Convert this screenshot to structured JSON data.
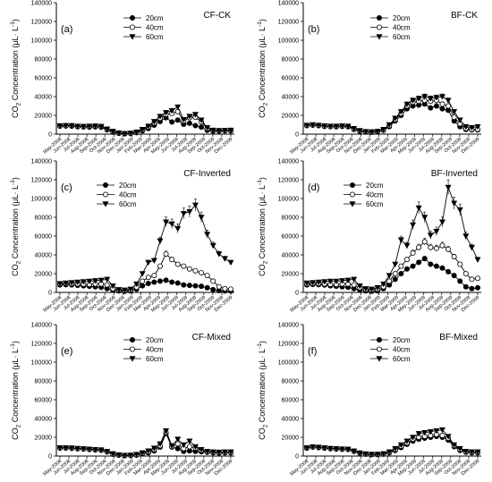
{
  "shared": {
    "ylabel_prefix": "CO",
    "ylabel_sub": "2",
    "ylabel_main": " Concentration",
    "ylabel_unit": "(μL· L",
    "ylabel_exp": "-1",
    "ylabel_close": ")",
    "y_ticks": [
      "0",
      "20000",
      "40000",
      "60000",
      "80000",
      "100000",
      "120000",
      "140000"
    ],
    "x_months": [
      "May-2008",
      "Jun-2008",
      "Jul-2008",
      "Aug-2008",
      "Sep-2008",
      "Oct-2008",
      "Nov-2008",
      "Dec-2008",
      "Jan-2009",
      "Feb-2009",
      "Mar-2009",
      "Apr-2009",
      "May-2009",
      "Jun-2009",
      "Jul-2009",
      "Aug-2009",
      "Sep-2009",
      "Oct-2009",
      "Nov-2009",
      "Dec-2009"
    ],
    "legend": [
      "20cm",
      "40cm",
      "60cm"
    ],
    "colors": {
      "line": "#000000",
      "open_marker": "#ffffff"
    }
  },
  "chart_data": [
    {
      "type": "line",
      "panel_label": "(a)",
      "title": "CF-CK",
      "legend_position": "top-center",
      "x": [
        0,
        1,
        2,
        3,
        4,
        5,
        6,
        7,
        8,
        9,
        10,
        11,
        12,
        13,
        14,
        15,
        16,
        17,
        18,
        19,
        20,
        21,
        22,
        23,
        24,
        25,
        26,
        27,
        28,
        29
      ],
      "ylim": [
        0,
        140000
      ],
      "series": [
        {
          "name": "20cm",
          "values": [
            8500,
            8700,
            8400,
            7800,
            7600,
            7500,
            7700,
            7400,
            4500,
            2200,
            800,
            300,
            600,
            1500,
            3500,
            6000,
            9500,
            13500,
            17500,
            13000,
            15000,
            10500,
            11500,
            9000,
            7500,
            4000,
            3200,
            3200,
            3400,
            3500
          ]
        },
        {
          "name": "40cm",
          "values": [
            8800,
            8900,
            9000,
            8200,
            8000,
            8200,
            8400,
            8000,
            5000,
            2800,
            1200,
            500,
            900,
            2000,
            4500,
            7500,
            12000,
            17000,
            21000,
            22000,
            24000,
            14000,
            17500,
            18000,
            13000,
            6000,
            4000,
            3600,
            3800,
            4000
          ]
        },
        {
          "name": "60cm",
          "values": [
            9000,
            9200,
            9100,
            8500,
            8300,
            8500,
            8700,
            8300,
            5500,
            3000,
            1400,
            700,
            1100,
            2300,
            5000,
            8500,
            13500,
            19000,
            23000,
            25000,
            29000,
            15500,
            19000,
            21000,
            15000,
            7000,
            4200,
            3800,
            4000,
            4200
          ]
        }
      ]
    },
    {
      "type": "line",
      "panel_label": "(b)",
      "title": "BF-CK",
      "legend_position": "top-center",
      "x": [
        0,
        1,
        2,
        3,
        4,
        5,
        6,
        7,
        8,
        9,
        10,
        11,
        12,
        13,
        14,
        15,
        16,
        17,
        18,
        19,
        20,
        21,
        22,
        23,
        24,
        25,
        26,
        27,
        28,
        29
      ],
      "ylim": [
        0,
        140000
      ],
      "series": [
        {
          "name": "20cm",
          "values": [
            9000,
            9500,
            9000,
            8200,
            8000,
            7800,
            8200,
            7800,
            5000,
            3000,
            2200,
            2000,
            2500,
            4000,
            8000,
            14000,
            20000,
            27000,
            30000,
            31000,
            32000,
            28000,
            30000,
            27000,
            25500,
            14000,
            8000,
            5000,
            4500,
            4500
          ]
        },
        {
          "name": "40cm",
          "values": [
            9200,
            9800,
            9200,
            8500,
            8200,
            8200,
            8500,
            8200,
            5500,
            3500,
            2500,
            2300,
            2800,
            4500,
            9000,
            15500,
            22000,
            30000,
            34000,
            35000,
            36000,
            35000,
            36000,
            32000,
            30000,
            18000,
            11000,
            6000,
            5000,
            5200
          ]
        },
        {
          "name": "60cm",
          "values": [
            9500,
            10000,
            9500,
            8800,
            8500,
            8500,
            8800,
            8500,
            6000,
            3800,
            2800,
            2500,
            3000,
            5000,
            10000,
            17000,
            24000,
            32000,
            36000,
            38000,
            40000,
            38000,
            39000,
            40000,
            36000,
            24000,
            15000,
            8000,
            7000,
            8000
          ]
        }
      ]
    },
    {
      "type": "line",
      "panel_label": "(c)",
      "title": "CF-Inverted",
      "legend_position": "top-left",
      "x": [
        0,
        1,
        2,
        3,
        4,
        5,
        6,
        7,
        8,
        9,
        10,
        11,
        12,
        13,
        14,
        15,
        16,
        17,
        18,
        19,
        20,
        21,
        22,
        23,
        24,
        25,
        26,
        27,
        28,
        29
      ],
      "ylim": [
        0,
        140000
      ],
      "series": [
        {
          "name": "20cm",
          "values": [
            8000,
            8200,
            8000,
            7500,
            7000,
            6500,
            6000,
            5500,
            4000,
            2500,
            1500,
            1200,
            1500,
            3500,
            7000,
            9500,
            11000,
            12000,
            13000,
            11000,
            10000,
            8000,
            7500,
            7000,
            6500,
            5000,
            3000,
            2000,
            1500,
            1500
          ]
        },
        {
          "name": "40cm",
          "values": [
            9000,
            9500,
            9200,
            9000,
            8800,
            8500,
            9000,
            9000,
            8000,
            4000,
            2500,
            2000,
            2500,
            5500,
            12000,
            16000,
            18000,
            28000,
            41000,
            35000,
            30000,
            28000,
            25000,
            23000,
            21000,
            18000,
            12000,
            6000,
            4000,
            3500
          ]
        },
        {
          "name": "60cm",
          "values": [
            9500,
            10000,
            10500,
            11000,
            11500,
            12000,
            12500,
            13000,
            14000,
            7000,
            3000,
            2500,
            3500,
            9000,
            20000,
            32000,
            34000,
            55000,
            75000,
            73000,
            68000,
            84000,
            86000,
            93000,
            80000,
            62000,
            50000,
            41000,
            36000,
            32000
          ]
        }
      ]
    },
    {
      "type": "line",
      "panel_label": "(d)",
      "title": "BF-Inverted",
      "legend_position": "top-left",
      "x": [
        0,
        1,
        2,
        3,
        4,
        5,
        6,
        7,
        8,
        9,
        10,
        11,
        12,
        13,
        14,
        15,
        16,
        17,
        18,
        19,
        20,
        21,
        22,
        23,
        24,
        25,
        26,
        27,
        28,
        29
      ],
      "ylim": [
        0,
        140000
      ],
      "series": [
        {
          "name": "20cm",
          "values": [
            8000,
            8500,
            8200,
            7800,
            7000,
            6500,
            6000,
            5500,
            4000,
            2500,
            1500,
            1200,
            1500,
            4000,
            8000,
            14000,
            20000,
            25000,
            28000,
            32000,
            36000,
            30000,
            28000,
            26000,
            22000,
            18000,
            12000,
            6000,
            4000,
            5000
          ]
        },
        {
          "name": "40cm",
          "values": [
            9000,
            9500,
            9500,
            9000,
            8500,
            8500,
            9000,
            9000,
            8000,
            5000,
            3000,
            2500,
            3500,
            6000,
            12000,
            20000,
            28000,
            35000,
            42000,
            48000,
            54000,
            48000,
            47000,
            50000,
            46000,
            38000,
            30000,
            20000,
            14000,
            15000
          ]
        },
        {
          "name": "60cm",
          "values": [
            10000,
            10500,
            11000,
            11500,
            12000,
            12000,
            12500,
            13000,
            14000,
            7000,
            4000,
            3500,
            5000,
            9000,
            18000,
            30000,
            56000,
            50000,
            72000,
            90000,
            80000,
            61000,
            65000,
            75000,
            112000,
            95000,
            88000,
            60000,
            48000,
            35000
          ]
        }
      ]
    },
    {
      "type": "line",
      "panel_label": "(e)",
      "title": "CF-Mixed",
      "legend_position": "top-center",
      "x": [
        0,
        1,
        2,
        3,
        4,
        5,
        6,
        7,
        8,
        9,
        10,
        11,
        12,
        13,
        14,
        15,
        16,
        17,
        18,
        19,
        20,
        21,
        22,
        23,
        24,
        25,
        26,
        27,
        28,
        29
      ],
      "ylim": [
        0,
        140000
      ],
      "series": [
        {
          "name": "20cm",
          "values": [
            8500,
            8600,
            8200,
            7800,
            7500,
            7000,
            6500,
            6200,
            4500,
            2000,
            1000,
            500,
            600,
            1000,
            2500,
            3500,
            5500,
            9500,
            24000,
            9500,
            8000,
            5000,
            5500,
            5000,
            4500,
            4000,
            3500,
            3200,
            3500,
            3500
          ]
        },
        {
          "name": "40cm",
          "values": [
            8600,
            8700,
            8400,
            7900,
            7600,
            7200,
            6800,
            6400,
            4700,
            2200,
            1200,
            600,
            800,
            1400,
            3000,
            4500,
            7000,
            11000,
            25000,
            10000,
            13000,
            8000,
            10000,
            8500,
            6000,
            4500,
            4000,
            3800,
            4000,
            4000
          ]
        },
        {
          "name": "60cm",
          "values": [
            8800,
            8900,
            8600,
            8100,
            7800,
            7400,
            7000,
            6600,
            5000,
            2500,
            1400,
            800,
            1000,
            1800,
            3500,
            5500,
            8500,
            13000,
            27000,
            11000,
            18000,
            12000,
            16000,
            10000,
            7000,
            5000,
            4500,
            4200,
            4500,
            4500
          ]
        }
      ]
    },
    {
      "type": "line",
      "panel_label": "(f)",
      "title": "BF-Mixed",
      "legend_position": "top-center",
      "x": [
        0,
        1,
        2,
        3,
        4,
        5,
        6,
        7,
        8,
        9,
        10,
        11,
        12,
        13,
        14,
        15,
        16,
        17,
        18,
        19,
        20,
        21,
        22,
        23,
        24,
        25,
        26,
        27,
        28,
        29
      ],
      "ylim": [
        0,
        140000
      ],
      "series": [
        {
          "name": "20cm",
          "values": [
            8500,
            9500,
            9000,
            8500,
            7800,
            7500,
            7200,
            7000,
            5000,
            3000,
            2000,
            1500,
            1500,
            2000,
            3500,
            6000,
            9000,
            12500,
            16000,
            18000,
            19000,
            20000,
            21000,
            20000,
            17000,
            10000,
            6000,
            4000,
            3500,
            3500
          ]
        },
        {
          "name": "40cm",
          "values": [
            8700,
            9700,
            9200,
            8700,
            8000,
            7700,
            7400,
            7200,
            5200,
            3200,
            2200,
            1700,
            1800,
            2300,
            4000,
            7000,
            10500,
            14000,
            18000,
            20000,
            21000,
            22000,
            23000,
            22000,
            19000,
            11000,
            7000,
            4500,
            4000,
            4000
          ]
        },
        {
          "name": "60cm",
          "values": [
            8900,
            9900,
            9400,
            8900,
            8200,
            7900,
            7600,
            7400,
            5400,
            3400,
            2400,
            1900,
            2000,
            2600,
            4500,
            8000,
            12000,
            16000,
            20000,
            24000,
            25000,
            26000,
            27000,
            28000,
            21000,
            12000,
            8000,
            5000,
            4500,
            4500
          ]
        }
      ]
    }
  ]
}
